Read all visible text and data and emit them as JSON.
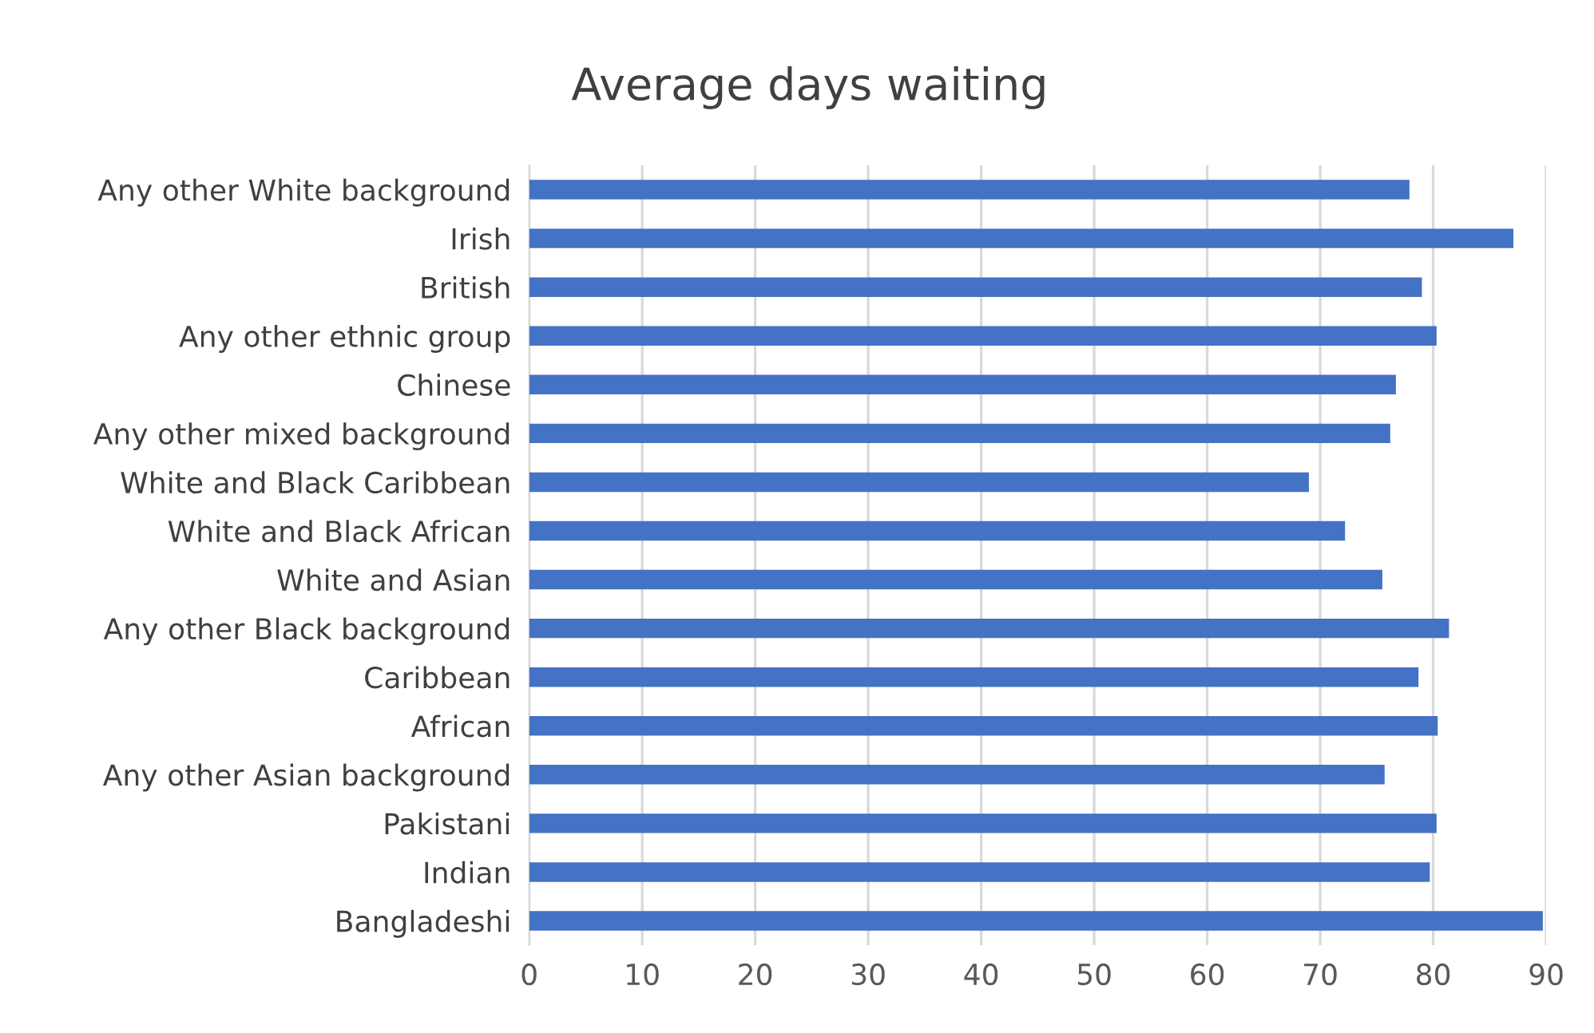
{
  "chart_data": {
    "type": "bar",
    "orientation": "horizontal",
    "title": "Average days waiting",
    "categories": [
      "Any other White background",
      "Irish",
      "British",
      "Any other ethnic group",
      "Chinese",
      "Any other mixed background",
      "White and Black Caribbean",
      "White and Black African",
      "White and Asian",
      "Any other Black background",
      "Caribbean",
      "African",
      "Any other Asian background",
      "Pakistani",
      "Indian",
      "Bangladeshi"
    ],
    "values": [
      77.9,
      87.1,
      79.0,
      80.3,
      76.7,
      76.2,
      69.0,
      72.2,
      75.5,
      81.4,
      78.7,
      80.4,
      75.7,
      80.3,
      79.7,
      89.7
    ],
    "color": "#4472c4",
    "xlim": [
      0,
      90
    ],
    "xticks": [
      0,
      10,
      20,
      30,
      40,
      50,
      60,
      70,
      80,
      90
    ],
    "grid": "x"
  }
}
